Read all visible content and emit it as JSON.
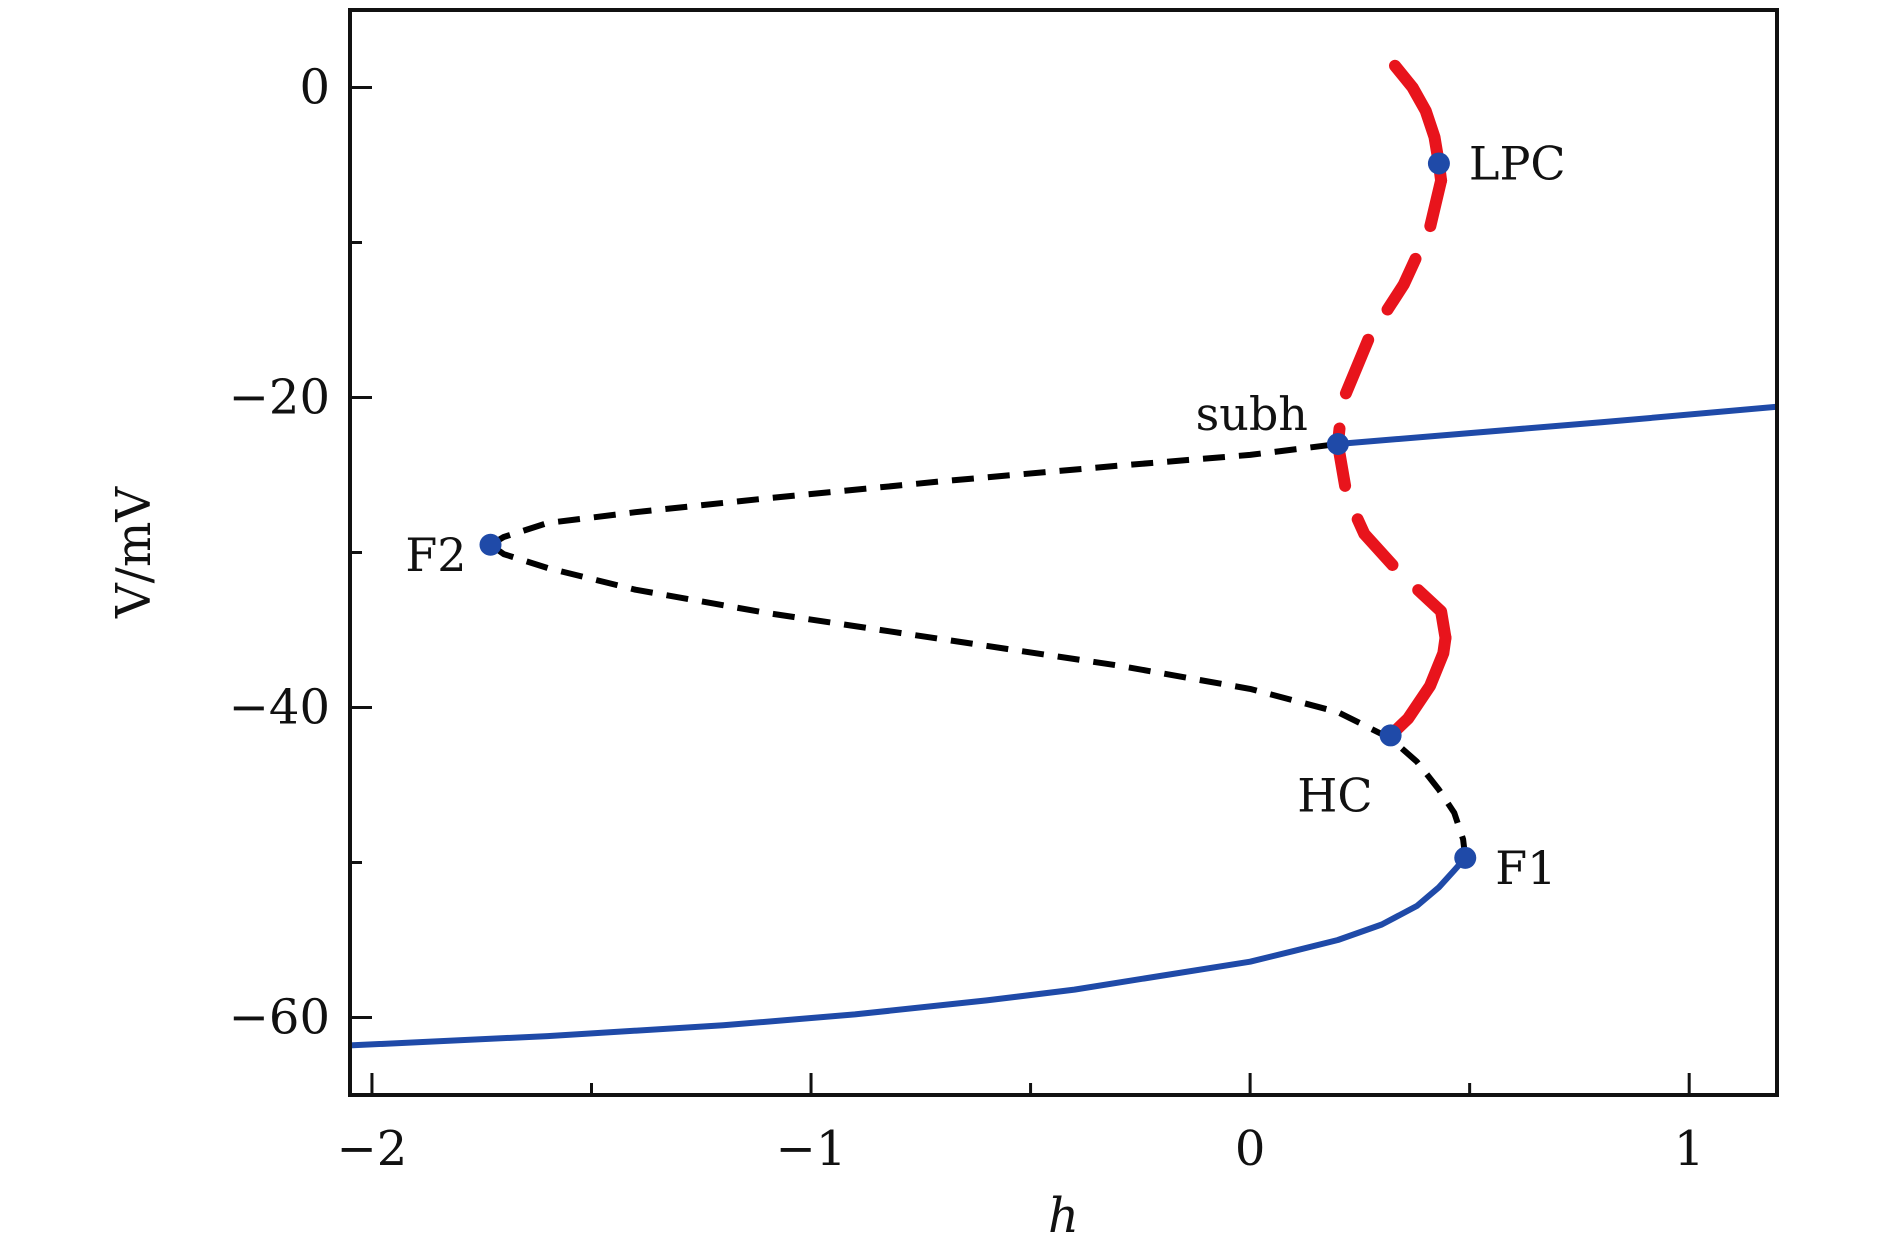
{
  "chart_data": {
    "type": "line",
    "title": "",
    "xlabel": "h",
    "ylabel": "V/mV",
    "xlim": [
      -2.05,
      1.2
    ],
    "ylim": [
      -65,
      5
    ],
    "grid": false,
    "x_ticks": [
      -2,
      -1,
      0,
      1
    ],
    "x_tick_labels": [
      "−2",
      "−1",
      "0",
      "1"
    ],
    "x_minor_ticks": [
      -1.5,
      -0.5,
      0.5
    ],
    "y_ticks": [
      0,
      -20,
      -40,
      -60
    ],
    "y_tick_labels": [
      "0",
      "−20",
      "−40",
      "−60"
    ],
    "y_minor_ticks": [
      -10,
      -30,
      -50
    ],
    "colors": {
      "stable_equilibrium": "#1f4aa8",
      "unstable_equilibrium": "#000000",
      "periodic_orbit": "#e8141c",
      "special_point": "#1f4aa8"
    },
    "series": [
      {
        "style": "solid",
        "color": "#1f4aa8",
        "x": [
          -2.05,
          -1.6,
          -1.2,
          -0.9,
          -0.6,
          -0.4,
          -0.2,
          0.0,
          0.1,
          0.2,
          0.3,
          0.38,
          0.43,
          0.465,
          0.49
        ],
        "y": [
          -61.8,
          -61.2,
          -60.5,
          -59.8,
          -58.9,
          -58.2,
          -57.3,
          -56.4,
          -55.7,
          -55.0,
          -54.0,
          -52.8,
          -51.6,
          -50.5,
          -49.7
        ]
      },
      {
        "style": "dashed",
        "color": "#000000",
        "x": [
          0.49,
          0.485,
          0.465,
          0.43,
          0.38,
          0.32,
          0.2,
          0.0,
          -0.3,
          -0.7,
          -1.1,
          -1.4,
          -1.6,
          -1.7,
          -1.73
        ],
        "y": [
          -49.7,
          -48.5,
          -46.8,
          -45.3,
          -43.5,
          -42.0,
          -40.3,
          -38.8,
          -37.3,
          -35.6,
          -33.9,
          -32.4,
          -31.0,
          -30.1,
          -29.5
        ]
      },
      {
        "style": "dashed",
        "color": "#000000",
        "x": [
          -1.73,
          -1.7,
          -1.6,
          -1.4,
          -1.1,
          -0.7,
          -0.3,
          0.0,
          0.2
        ],
        "y": [
          -29.5,
          -29.0,
          -28.1,
          -27.4,
          -26.5,
          -25.4,
          -24.4,
          -23.7,
          -23.0
        ]
      },
      {
        "style": "solid",
        "color": "#1f4aa8",
        "x": [
          0.2,
          0.5,
          0.8,
          1.2
        ],
        "y": [
          -23.0,
          -22.3,
          -21.6,
          -20.6
        ]
      },
      {
        "style": "solid",
        "color": "#e8141c",
        "x": [
          0.32,
          0.36,
          0.41,
          0.44,
          0.445
        ],
        "y": [
          -41.8,
          -40.7,
          -38.6,
          -36.5,
          -35.5
        ]
      },
      {
        "style": "dashed",
        "color": "#e8141c",
        "x": [
          0.445,
          0.435,
          0.34,
          0.26,
          0.22,
          0.2,
          0.21,
          0.27,
          0.35,
          0.41,
          0.435
        ],
        "y": [
          -35.5,
          -33.8,
          -31.3,
          -28.8,
          -26.3,
          -23.0,
          -20.3,
          -16.2,
          -12.7,
          -9.0,
          -6.0
        ]
      },
      {
        "style": "solid",
        "color": "#e8141c",
        "x": [
          0.435,
          0.43,
          0.42,
          0.4,
          0.37,
          0.33
        ],
        "y": [
          -6.0,
          -4.9,
          -3.2,
          -1.5,
          0.0,
          1.4
        ]
      }
    ],
    "points": [
      {
        "label": "LPC",
        "x": 0.43,
        "y": -4.9
      },
      {
        "label": "subh",
        "x": 0.2,
        "y": -23.0
      },
      {
        "label": "F2",
        "x": -1.73,
        "y": -29.5
      },
      {
        "label": "HC",
        "x": 0.32,
        "y": -41.8
      },
      {
        "label": "F1",
        "x": 0.49,
        "y": -49.7
      }
    ]
  }
}
